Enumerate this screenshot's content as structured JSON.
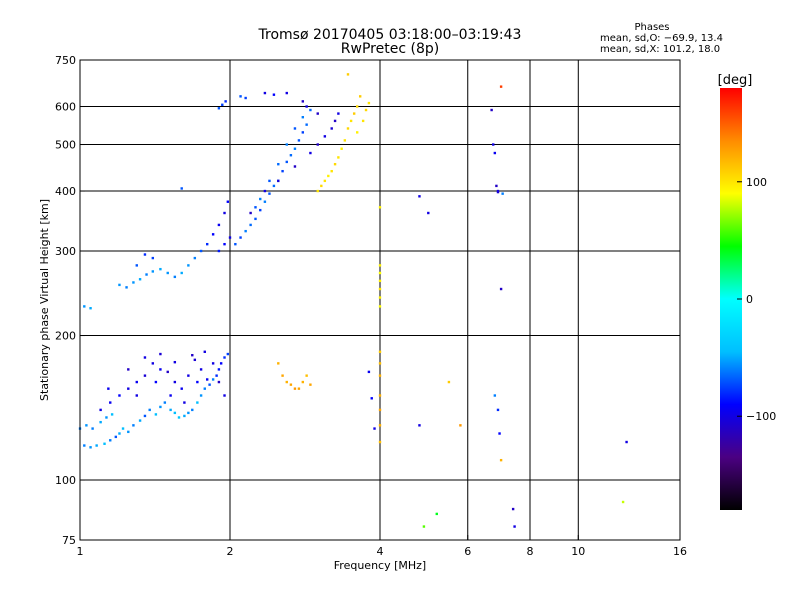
{
  "header": {
    "title_line1": "Tromsø 20170405 03:18:00–03:19:43",
    "title_line2": "RwPretec (8p)"
  },
  "stats": {
    "heading": "Phases",
    "line_o": "mean, sd,O: −69.9, 13.4",
    "line_x": "mean, sd,X: 101.2, 18.0"
  },
  "chart_data": {
    "type": "scatter",
    "xlabel": "Frequency [MHz]",
    "ylabel": "Stationary phase Virtual Height [km]",
    "xscale": "log",
    "yscale": "log",
    "xlim": [
      1,
      16
    ],
    "ylim": [
      75,
      750
    ],
    "x_ticks": [
      1,
      2,
      4,
      6,
      8,
      10,
      16
    ],
    "y_ticks": [
      75,
      100,
      200,
      300,
      400,
      500,
      600,
      750
    ],
    "grid": true,
    "colorbar": {
      "label": "[deg]",
      "range": [
        -180,
        180
      ],
      "ticks": [
        -100,
        0,
        100
      ],
      "colors": [
        "#000000",
        "#4b0082",
        "#0000ff",
        "#00bfff",
        "#00ffff",
        "#00ff00",
        "#ffff00",
        "#ff8c00",
        "#ff0000"
      ]
    },
    "series": [
      {
        "points": [
          [
            1.02,
            118,
            -60
          ],
          [
            1.05,
            117,
            -55
          ],
          [
            1.08,
            118,
            -50
          ],
          [
            1.12,
            119,
            -45
          ],
          [
            1.15,
            121,
            -60
          ],
          [
            1.18,
            123,
            -70
          ],
          [
            1.2,
            125,
            -50
          ],
          [
            1.22,
            128,
            -45
          ],
          [
            1.25,
            126,
            -55
          ],
          [
            1.28,
            130,
            -60
          ],
          [
            1.32,
            133,
            -50
          ],
          [
            1.35,
            136,
            -70
          ],
          [
            1.38,
            140,
            -60
          ],
          [
            1.42,
            137,
            -45
          ],
          [
            1.45,
            142,
            -55
          ],
          [
            1.48,
            145,
            -60
          ],
          [
            1.52,
            140,
            -50
          ],
          [
            1.55,
            138,
            -45
          ],
          [
            1.58,
            135,
            -40
          ],
          [
            1.62,
            136,
            -50
          ],
          [
            1.65,
            138,
            -55
          ],
          [
            1.68,
            140,
            -60
          ],
          [
            1.72,
            145,
            -45
          ],
          [
            1.75,
            150,
            -55
          ],
          [
            1.78,
            155,
            -60
          ],
          [
            1.82,
            158,
            -70
          ],
          [
            1.85,
            162,
            -60
          ],
          [
            1.88,
            165,
            -80
          ],
          [
            1.9,
            170,
            -85
          ],
          [
            1.92,
            175,
            -90
          ],
          [
            1.95,
            180,
            -80
          ],
          [
            1.98,
            183,
            -75
          ],
          [
            1.1,
            140,
            -100
          ],
          [
            1.15,
            145,
            -95
          ],
          [
            1.2,
            150,
            -90
          ],
          [
            1.25,
            155,
            -100
          ],
          [
            1.3,
            160,
            -95
          ],
          [
            1.35,
            165,
            -105
          ],
          [
            1.4,
            175,
            -100
          ],
          [
            1.45,
            170,
            -95
          ],
          [
            1.5,
            168,
            -110
          ],
          [
            1.55,
            160,
            -100
          ],
          [
            1.6,
            155,
            -95
          ],
          [
            1.65,
            165,
            -100
          ],
          [
            1.7,
            178,
            -105
          ],
          [
            1.75,
            170,
            -100
          ],
          [
            1.8,
            162,
            -95
          ],
          [
            1.85,
            175,
            -100
          ],
          [
            1.9,
            160,
            -110
          ],
          [
            1.95,
            150,
            -100
          ],
          [
            1.25,
            170,
            -110
          ],
          [
            1.35,
            180,
            -100
          ],
          [
            1.45,
            183,
            -105
          ],
          [
            1.55,
            176,
            -100
          ],
          [
            1.68,
            182,
            -110
          ],
          [
            1.78,
            185,
            -100
          ],
          [
            1.14,
            155,
            -95
          ],
          [
            1.3,
            150,
            -100
          ],
          [
            1.42,
            160,
            -90
          ],
          [
            1.52,
            150,
            -95
          ],
          [
            1.62,
            145,
            -100
          ],
          [
            1.72,
            160,
            -90
          ],
          [
            1.0,
            128,
            -60
          ],
          [
            1.03,
            130,
            -55
          ],
          [
            1.06,
            128,
            -60
          ],
          [
            1.1,
            132,
            -50
          ],
          [
            1.13,
            135,
            -55
          ],
          [
            1.16,
            137,
            -45
          ],
          [
            1.02,
            230,
            -55
          ],
          [
            1.05,
            228,
            -50
          ],
          [
            1.2,
            255,
            -55
          ],
          [
            1.24,
            252,
            -60
          ],
          [
            1.28,
            258,
            -55
          ],
          [
            1.32,
            262,
            -50
          ],
          [
            1.36,
            268,
            -60
          ],
          [
            1.4,
            272,
            -55
          ],
          [
            1.45,
            275,
            -50
          ],
          [
            1.5,
            270,
            -55
          ],
          [
            1.55,
            265,
            -60
          ],
          [
            1.6,
            270,
            -50
          ],
          [
            1.65,
            280,
            -55
          ],
          [
            1.7,
            290,
            -60
          ],
          [
            1.75,
            300,
            -70
          ],
          [
            1.8,
            310,
            -80
          ],
          [
            1.85,
            325,
            -90
          ],
          [
            1.9,
            340,
            -95
          ],
          [
            1.95,
            360,
            -100
          ],
          [
            1.98,
            380,
            -90
          ],
          [
            1.35,
            295,
            -80
          ],
          [
            1.4,
            290,
            -75
          ],
          [
            1.3,
            280,
            -70
          ],
          [
            1.9,
            300,
            -85
          ],
          [
            1.95,
            310,
            -90
          ],
          [
            2.0,
            320,
            -100
          ],
          [
            1.6,
            405,
            -70
          ],
          [
            1.9,
            595,
            -70
          ],
          [
            1.93,
            605,
            -75
          ],
          [
            1.96,
            615,
            -80
          ],
          [
            2.1,
            630,
            -70
          ],
          [
            2.15,
            625,
            -75
          ],
          [
            2.35,
            640,
            -100
          ],
          [
            2.45,
            635,
            -90
          ],
          [
            2.6,
            640,
            -100
          ],
          [
            2.8,
            615,
            -110
          ],
          [
            2.85,
            600,
            -100
          ],
          [
            3.0,
            580,
            -110
          ],
          [
            2.05,
            310,
            -70
          ],
          [
            2.1,
            320,
            -75
          ],
          [
            2.15,
            330,
            -60
          ],
          [
            2.2,
            340,
            -65
          ],
          [
            2.25,
            350,
            -70
          ],
          [
            2.3,
            365,
            -75
          ],
          [
            2.35,
            380,
            -60
          ],
          [
            2.4,
            395,
            -70
          ],
          [
            2.45,
            410,
            -65
          ],
          [
            2.5,
            420,
            -60
          ],
          [
            2.55,
            440,
            -75
          ],
          [
            2.6,
            460,
            -70
          ],
          [
            2.65,
            475,
            -65
          ],
          [
            2.7,
            490,
            -60
          ],
          [
            2.75,
            510,
            -70
          ],
          [
            2.8,
            530,
            -75
          ],
          [
            2.85,
            550,
            -65
          ],
          [
            2.25,
            370,
            -70
          ],
          [
            2.3,
            385,
            -60
          ],
          [
            2.4,
            420,
            -70
          ],
          [
            2.5,
            455,
            -65
          ],
          [
            2.6,
            500,
            -60
          ],
          [
            2.7,
            540,
            -70
          ],
          [
            2.8,
            570,
            -60
          ],
          [
            2.9,
            590,
            -65
          ],
          [
            2.2,
            360,
            -110
          ],
          [
            2.35,
            400,
            -100
          ],
          [
            2.5,
            420,
            -105
          ],
          [
            2.7,
            450,
            -110
          ],
          [
            2.9,
            480,
            -100
          ],
          [
            3.0,
            500,
            -110
          ],
          [
            3.1,
            520,
            -100
          ],
          [
            3.2,
            540,
            -105
          ],
          [
            3.25,
            560,
            -110
          ],
          [
            3.3,
            580,
            -100
          ],
          [
            3.0,
            400,
            100
          ],
          [
            3.05,
            410,
            105
          ],
          [
            3.1,
            420,
            100
          ],
          [
            3.15,
            430,
            95
          ],
          [
            3.2,
            440,
            100
          ],
          [
            3.25,
            455,
            105
          ],
          [
            3.3,
            470,
            100
          ],
          [
            3.35,
            490,
            95
          ],
          [
            3.4,
            510,
            100
          ],
          [
            3.45,
            540,
            105
          ],
          [
            3.5,
            560,
            100
          ],
          [
            3.55,
            580,
            110
          ],
          [
            3.6,
            600,
            105
          ],
          [
            3.65,
            630,
            110
          ],
          [
            3.45,
            700,
            110
          ],
          [
            3.6,
            530,
            95
          ],
          [
            3.7,
            560,
            100
          ],
          [
            3.75,
            590,
            105
          ],
          [
            3.8,
            610,
            100
          ],
          [
            2.5,
            175,
            120
          ],
          [
            2.55,
            165,
            125
          ],
          [
            2.6,
            160,
            120
          ],
          [
            2.65,
            158,
            125
          ],
          [
            2.7,
            155,
            130
          ],
          [
            2.75,
            155,
            125
          ],
          [
            2.8,
            160,
            120
          ],
          [
            2.85,
            165,
            115
          ],
          [
            2.9,
            158,
            125
          ],
          [
            4.0,
            280,
            95
          ],
          [
            4.0,
            270,
            90
          ],
          [
            4.0,
            260,
            95
          ],
          [
            4.0,
            250,
            100
          ],
          [
            4.0,
            240,
            95
          ],
          [
            4.0,
            230,
            90
          ],
          [
            4.0,
            370,
            95
          ],
          [
            4.0,
            150,
            120
          ],
          [
            4.0,
            140,
            125
          ],
          [
            4.0,
            130,
            120
          ],
          [
            4.0,
            120,
            115
          ],
          [
            4.0,
            185,
            110
          ],
          [
            4.0,
            175,
            115
          ],
          [
            4.0,
            165,
            120
          ],
          [
            3.8,
            168,
            -95
          ],
          [
            3.85,
            148,
            -90
          ],
          [
            3.9,
            128,
            -100
          ],
          [
            4.8,
            390,
            -100
          ],
          [
            5.0,
            360,
            -100
          ],
          [
            4.8,
            130,
            -100
          ],
          [
            5.2,
            85,
            40
          ],
          [
            4.9,
            80,
            60
          ],
          [
            5.5,
            160,
            110
          ],
          [
            5.8,
            130,
            130
          ],
          [
            6.7,
            590,
            -110
          ],
          [
            6.75,
            500,
            -100
          ],
          [
            6.8,
            480,
            -95
          ],
          [
            6.85,
            410,
            -110
          ],
          [
            6.9,
            398,
            -105
          ],
          [
            7.0,
            660,
            160
          ],
          [
            7.05,
            395,
            -60
          ],
          [
            7.0,
            250,
            -110
          ],
          [
            6.8,
            150,
            -60
          ],
          [
            6.9,
            140,
            -80
          ],
          [
            6.95,
            125,
            -90
          ],
          [
            7.0,
            110,
            120
          ],
          [
            6.9,
            400,
            -100
          ],
          [
            7.4,
            87,
            -110
          ],
          [
            7.45,
            80,
            -100
          ],
          [
            12.5,
            120,
            -100
          ],
          [
            12.3,
            90,
            80
          ]
        ]
      }
    ]
  }
}
